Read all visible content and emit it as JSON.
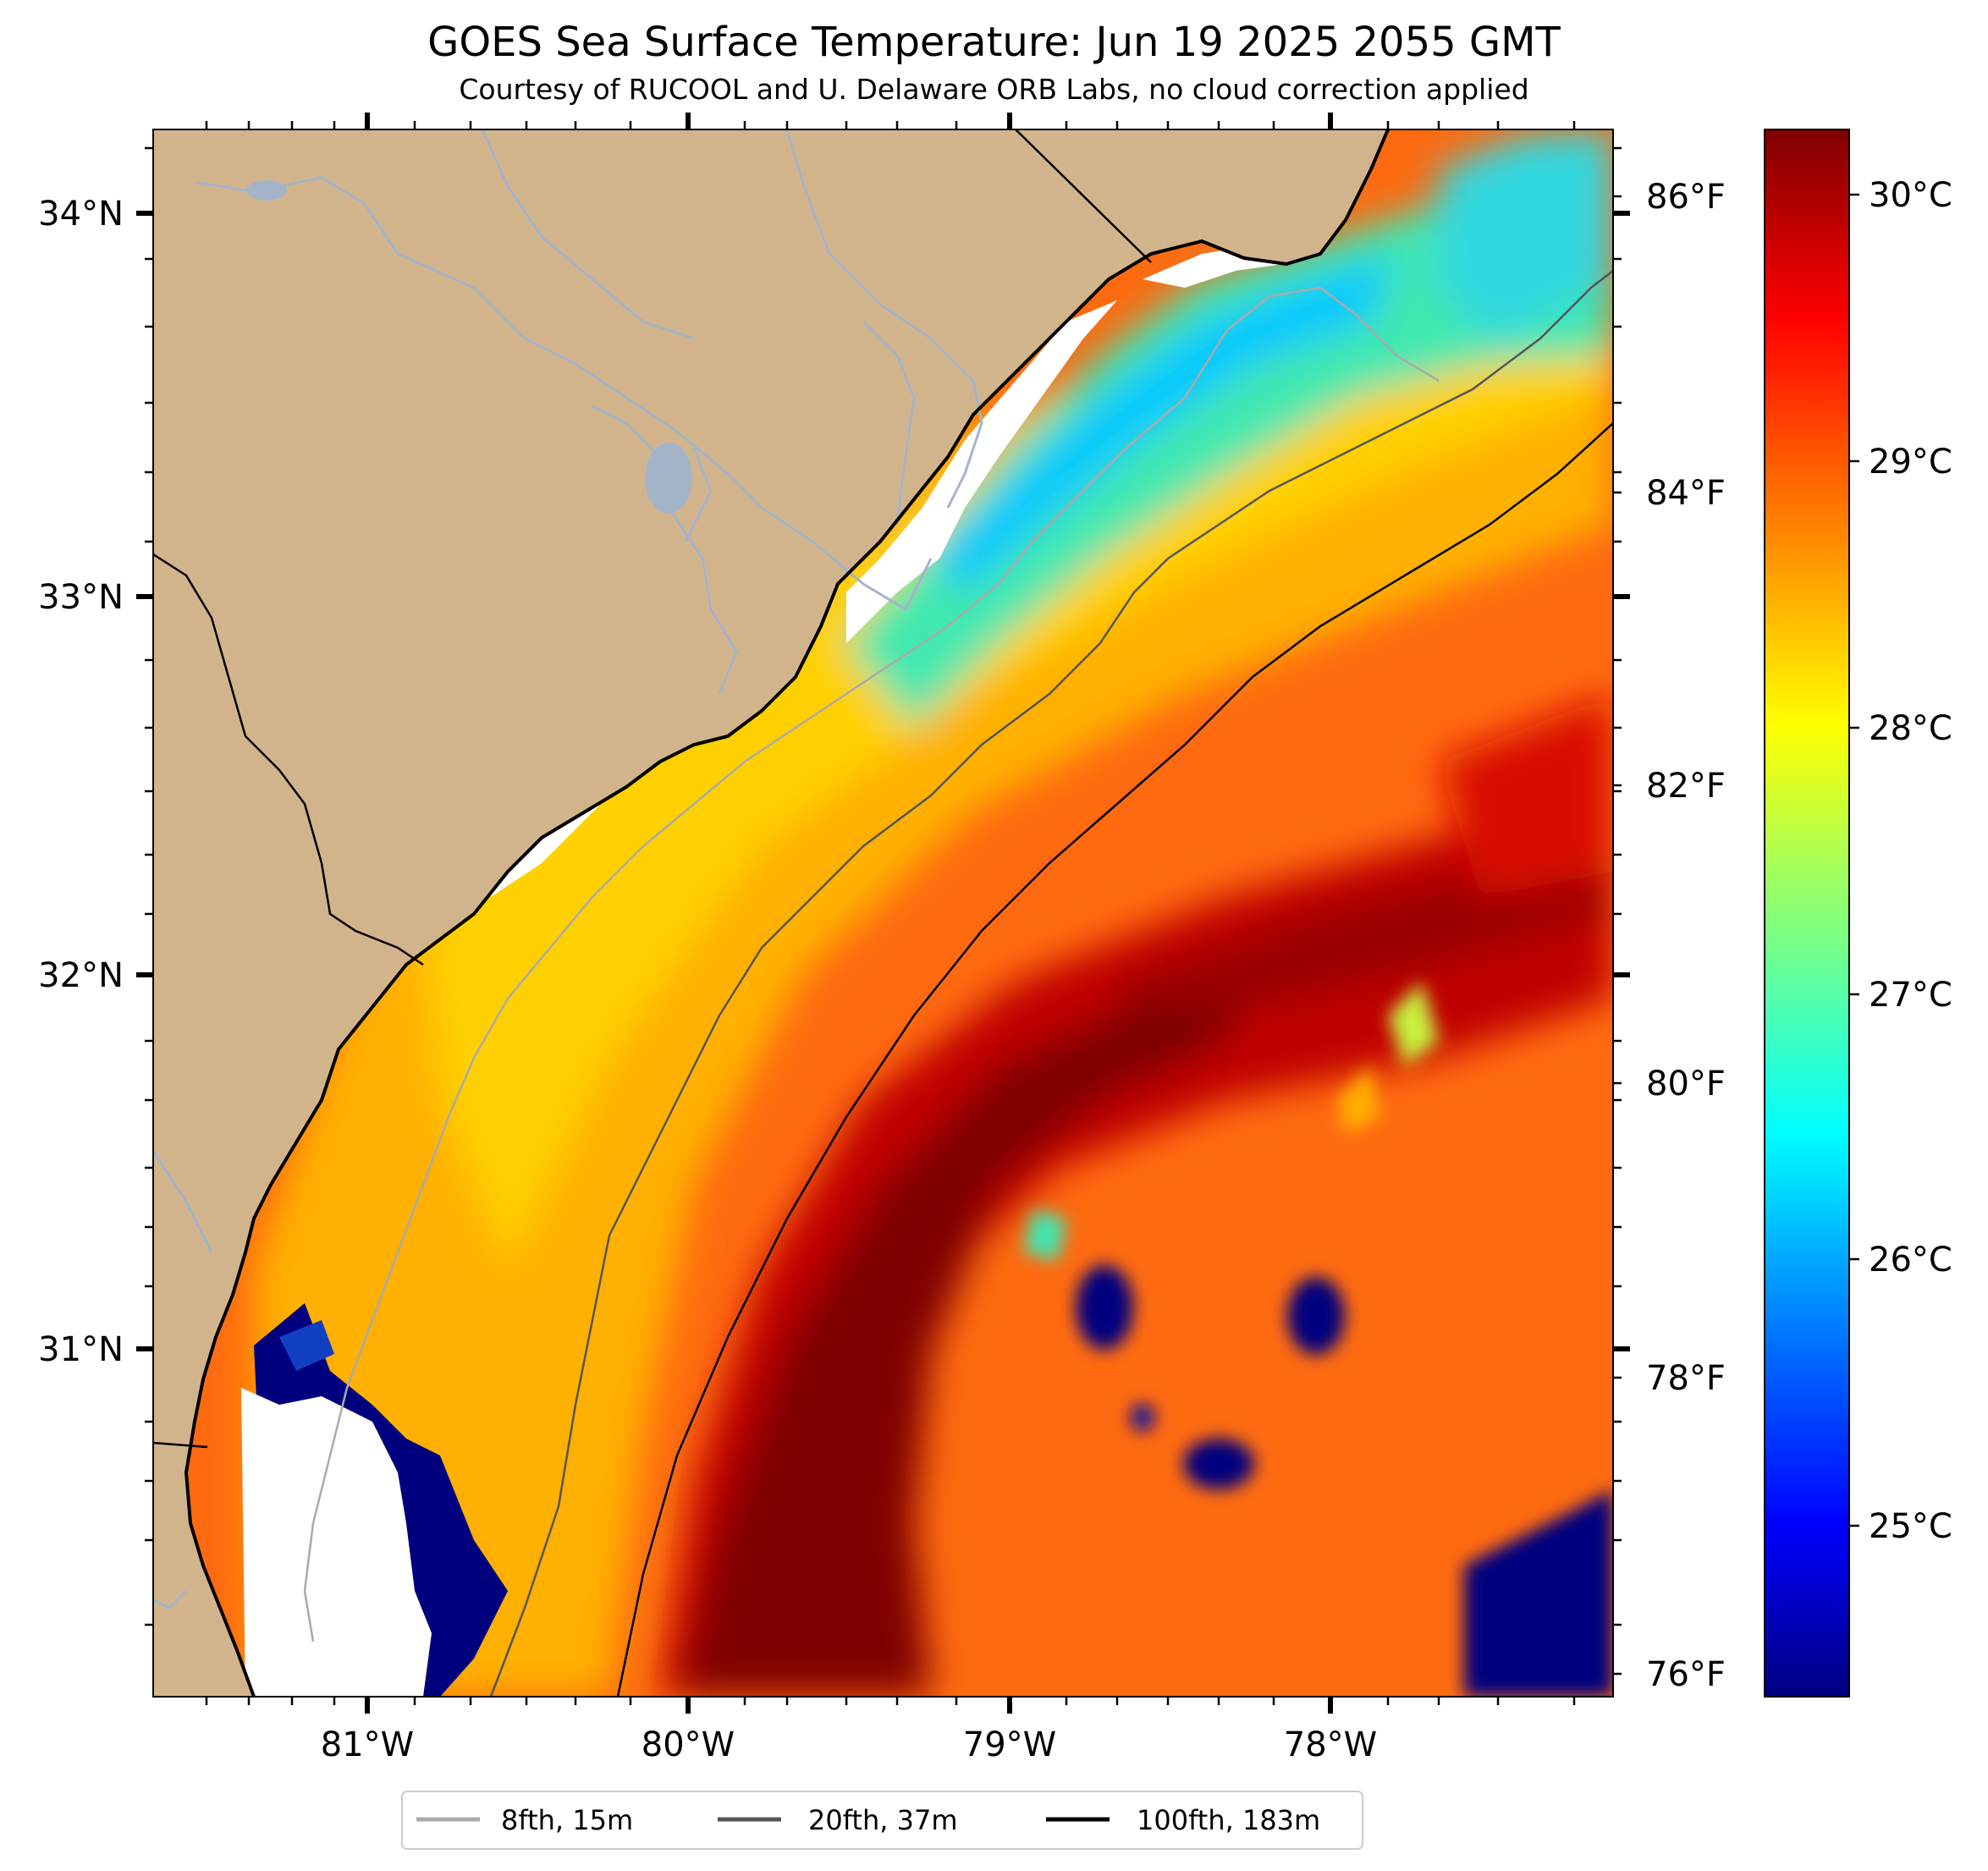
{
  "header": {
    "title": "GOES Sea Surface Temperature: Jun 19 2025 2055 GMT",
    "subtitle": "Courtesy of RUCOOL and U. Delaware ORB Labs, no cloud correction applied"
  },
  "map": {
    "lat_labels": [
      "34°N",
      "33°N",
      "32°N",
      "31°N"
    ],
    "lon_labels": [
      "81°W",
      "80°W",
      "79°W",
      "78°W"
    ],
    "land_color": "#d2b48c",
    "coastline_color": "#000000",
    "river_color": "#a4b4c8"
  },
  "fahrenheit_axis": {
    "labels": [
      "86°F",
      "84°F",
      "82°F",
      "80°F",
      "78°F",
      "76°F"
    ]
  },
  "colorbar": {
    "labels": [
      "30°C",
      "29°C",
      "28°C",
      "27°C",
      "26°C",
      "25°C"
    ],
    "colormap": "jet",
    "colors": [
      "#00007f",
      "#0000ff",
      "#007fff",
      "#00ffff",
      "#7fff7f",
      "#ffff00",
      "#ff7f00",
      "#ff0000",
      "#7f0000"
    ]
  },
  "legend": {
    "items": [
      {
        "label": "8fth, 15m",
        "color": "#aaaaaa"
      },
      {
        "label": "20fth, 37m",
        "color": "#555555"
      },
      {
        "label": "100fth, 183m",
        "color": "#000000"
      }
    ]
  }
}
